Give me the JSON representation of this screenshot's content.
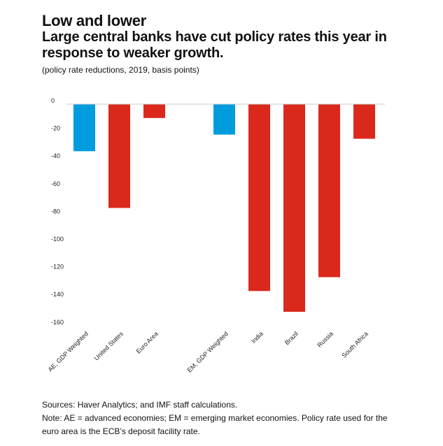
{
  "chart_data": {
    "type": "bar",
    "title": "Low and lower",
    "subtitle": "Large central banks have cut policy rates this year in response to weaker growth.",
    "units": "(policy rate reductions, 2019, basis points)",
    "xlabel": "",
    "ylabel": "",
    "categories": [
      "AE, GDP Weighted",
      "United States",
      "Euro Area",
      "",
      "EM, GDP Weighted",
      "India",
      "Brazil",
      "Russia",
      "South Africa"
    ],
    "values": [
      -34,
      -75,
      -10,
      null,
      -22,
      -135,
      -150,
      -125,
      -25
    ],
    "bar_groups": [
      "aggregate",
      "country",
      "country",
      "gap",
      "aggregate",
      "country",
      "country",
      "country",
      "country"
    ],
    "colors": {
      "aggregate": "#009CDE",
      "country": "#DA291C",
      "axis": "#c8c8c8"
    },
    "ylim": [
      -160,
      0
    ],
    "yticks": [
      0,
      -20,
      -40,
      -60,
      -80,
      -100,
      -120,
      -140,
      -160
    ],
    "ytick_labels": [
      "0",
      "-20",
      "-40",
      "-60",
      "-80",
      "-100",
      "-120",
      "-140",
      "-160"
    ],
    "grid": false,
    "legend": "none"
  },
  "footer": {
    "sources": "Sources: Haver Analytics; and IMF staff calculations.",
    "note": "Note: AE = advanced economies; EM = emerging market economies. Policy rate used for the euro area is the ECB’s deposit facility rate."
  }
}
